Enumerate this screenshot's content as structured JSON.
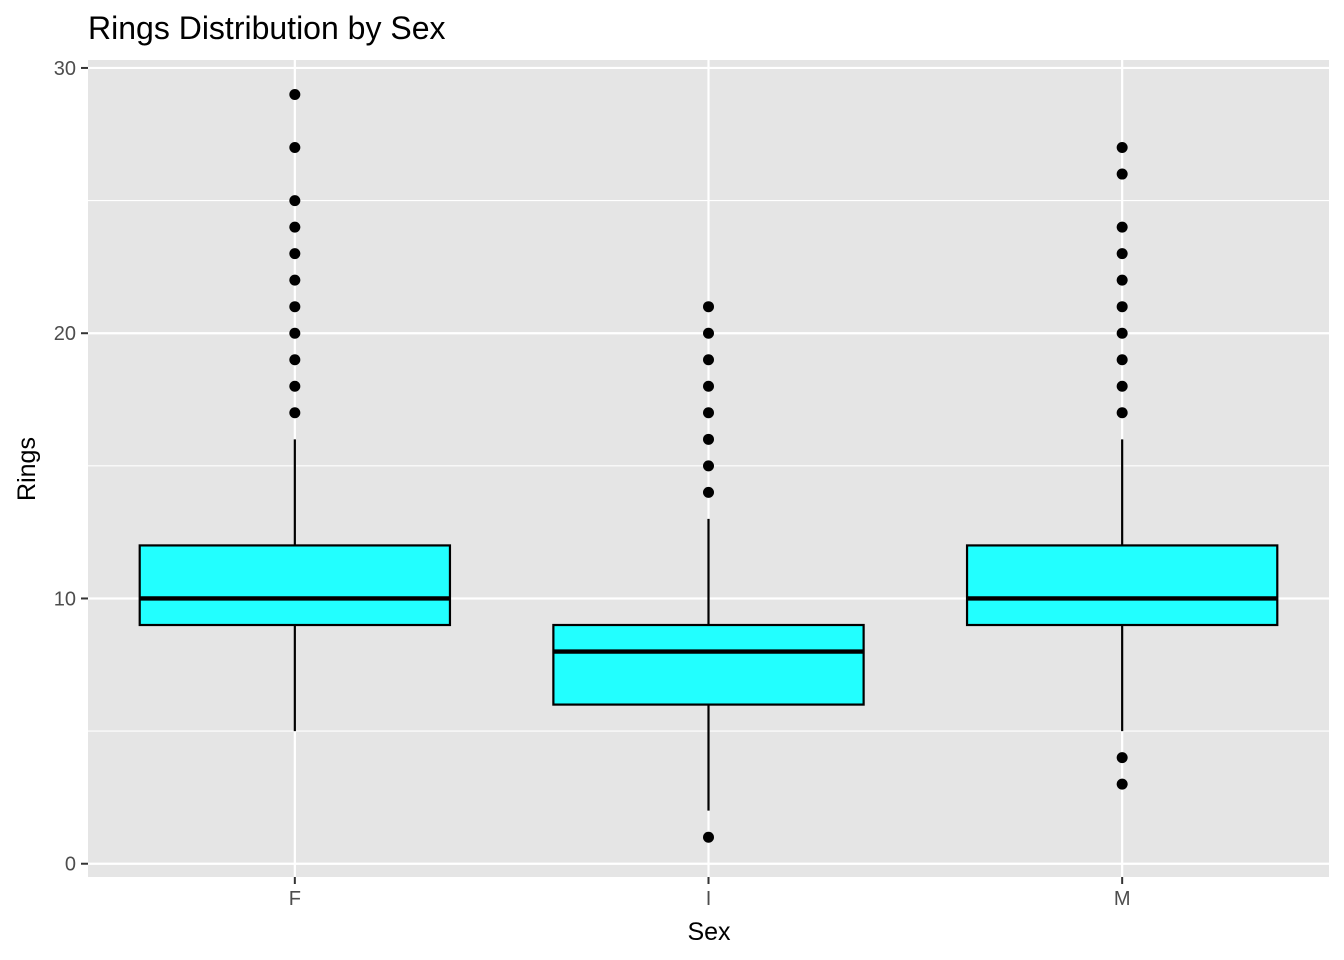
{
  "chart_data": {
    "type": "boxplot",
    "title": "Rings Distribution by Sex",
    "xlabel": "Sex",
    "ylabel": "Rings",
    "ylim": [
      -0.5,
      30.3
    ],
    "yticks": [
      0,
      10,
      20,
      30
    ],
    "categories": [
      "F",
      "I",
      "M"
    ],
    "box_fill": "#22ffff",
    "panel_background": "#e5e5e5",
    "gridline_color": "#ffffff",
    "grid": true,
    "boxes": [
      {
        "category": "F",
        "lower_whisker": 5,
        "q1": 9,
        "median": 10,
        "q3": 12,
        "upper_whisker": 16,
        "outliers": [
          17,
          18,
          19,
          20,
          21,
          22,
          23,
          24,
          25,
          27,
          29
        ]
      },
      {
        "category": "I",
        "lower_whisker": 2,
        "q1": 6,
        "median": 8,
        "q3": 9,
        "upper_whisker": 13,
        "outliers": [
          1,
          14,
          15,
          16,
          17,
          18,
          19,
          20,
          21
        ]
      },
      {
        "category": "M",
        "lower_whisker": 5,
        "q1": 9,
        "median": 10,
        "q3": 12,
        "upper_whisker": 16,
        "outliers": [
          3,
          4,
          17,
          18,
          19,
          20,
          21,
          22,
          23,
          24,
          26,
          27
        ]
      }
    ]
  }
}
